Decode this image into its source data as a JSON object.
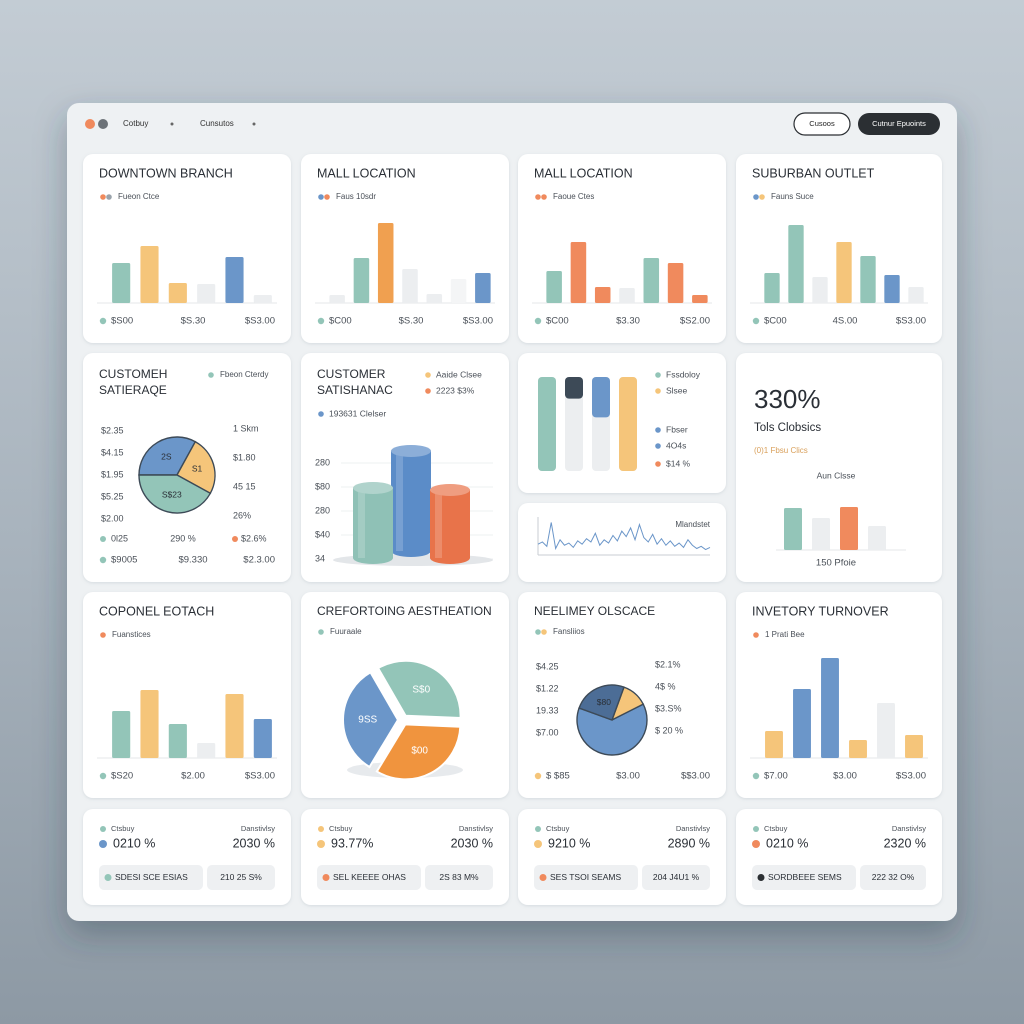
{
  "topbar": {
    "nav": [
      "Cotbuy",
      "Cunsutos"
    ],
    "buttons": [
      "Cusoos",
      "Cutnur Epuoints"
    ]
  },
  "cards": [
    {
      "kind": "bars",
      "title": "DOWNTOWN BRANCH",
      "legend": {
        "label": "Fueon Ctce",
        "colors": [
          "#f08a5d",
          "#9aa3ab"
        ]
      },
      "ylim": [
        0,
        100
      ],
      "bars": [
        {
          "value": 40,
          "color": "#93c5b8"
        },
        {
          "value": 57,
          "color": "#f5c57a"
        },
        {
          "value": 20,
          "color": "#f5c57a"
        },
        {
          "value": 19,
          "color": "#eceef0"
        },
        {
          "value": 46,
          "color": "#6b96c9"
        },
        {
          "value": 8,
          "color": "#eceef0"
        }
      ],
      "footer": [
        "$S00",
        "$S.30",
        "$S3.00"
      ],
      "footer_color": "#93c5b8"
    },
    {
      "kind": "bars",
      "title": "MALL LOCATION",
      "legend": {
        "label": "Faus 10sdr",
        "colors": [
          "#6b96c9",
          "#f08a5d"
        ]
      },
      "ylim": [
        0,
        100
      ],
      "bars": [
        {
          "value": 8,
          "color": "#eceef0"
        },
        {
          "value": 45,
          "color": "#93c5b8"
        },
        {
          "value": 80,
          "color": "#f0a050"
        },
        {
          "value": 34,
          "color": "#eceef0"
        },
        {
          "value": 9,
          "color": "#eceef0"
        },
        {
          "value": 24,
          "color": "#f4f5f6"
        },
        {
          "value": 30,
          "color": "#6b96c9"
        }
      ],
      "footer": [
        "$C00",
        "$S.30",
        "$S3.00"
      ],
      "footer_color": "#93c5b8"
    },
    {
      "kind": "bars",
      "title": "MALL LOCATION",
      "legend": {
        "label": "Faoue Ctes",
        "colors": [
          "#f08a5d",
          "#f08a5d"
        ]
      },
      "ylim": [
        0,
        100
      ],
      "bars": [
        {
          "value": 32,
          "color": "#93c5b8"
        },
        {
          "value": 61,
          "color": "#f08a5d"
        },
        {
          "value": 16,
          "color": "#f08a5d"
        },
        {
          "value": 15,
          "color": "#eceef0"
        },
        {
          "value": 45,
          "color": "#93c5b8"
        },
        {
          "value": 40,
          "color": "#f08a5d"
        },
        {
          "value": 8,
          "color": "#f08a5d"
        }
      ],
      "footer": [
        "$C00",
        "$3.30",
        "$S2.00"
      ],
      "footer_color": "#93c5b8"
    },
    {
      "kind": "bars",
      "title": "SUBURBAN OUTLET",
      "legend": {
        "label": "Fauns Suce",
        "colors": [
          "#6b96c9",
          "#f5c57a"
        ]
      },
      "ylim": [
        0,
        100
      ],
      "bars": [
        {
          "value": 30,
          "color": "#93c5b8"
        },
        {
          "value": 78,
          "color": "#93c5b8"
        },
        {
          "value": 26,
          "color": "#eceef0"
        },
        {
          "value": 61,
          "color": "#f5c57a"
        },
        {
          "value": 47,
          "color": "#93c5b8"
        },
        {
          "value": 28,
          "color": "#6b96c9"
        },
        {
          "value": 16,
          "color": "#eceef0"
        }
      ],
      "footer": [
        "$C00",
        "4S.00",
        "$S3.00"
      ],
      "footer_color": "#93c5b8"
    },
    {
      "kind": "pie-labeled",
      "title": [
        "CUSTOMEH",
        "SATIERAQE"
      ],
      "legend": {
        "label": "Fbeon Cterdy",
        "colors": [
          "#93c5b8"
        ]
      },
      "start": 270,
      "slices": [
        {
          "value": 33,
          "color": "#6b96c9",
          "label": "2S"
        },
        {
          "value": 25,
          "color": "#f5c57a",
          "label": "S1"
        },
        {
          "value": 42,
          "color": "#93c5b8",
          "label": "S$23"
        }
      ],
      "left_labels": [
        "$2.35",
        "$4.15",
        "$1.95",
        "$5.25",
        "$2.00"
      ],
      "right_labels": [
        "1 Skm",
        "$1.80",
        "45 15",
        "26%"
      ],
      "bottom": {
        "labels": [
          "0l25",
          "290 %",
          "$2.6%"
        ],
        "colors": [
          "#93c5b8",
          "#f08a5d"
        ]
      },
      "footer": [
        "$9005",
        "$9.330",
        "$2.3.00"
      ],
      "footer_color": "#93c5b8"
    },
    {
      "kind": "cylinders",
      "title": [
        "CUSTOMER",
        "SATISHANAC"
      ],
      "legend": [
        {
          "label": "Aaide Clsee",
          "color": "#f5c57a"
        },
        {
          "label": "2223 $3%",
          "color": "#f08a5d"
        }
      ],
      "sublegend": {
        "label": "193631 Clelser",
        "color": "#6b96c9"
      },
      "axis_labels": [
        "280",
        "$80",
        "280",
        "$40",
        "34"
      ],
      "ylim": [
        0,
        100
      ],
      "cylinders": [
        {
          "value": 100,
          "color": "#5b8cc8"
        },
        {
          "value": 70,
          "color": "#8fc1b6"
        },
        {
          "value": 68,
          "color": "#e8734a"
        }
      ]
    },
    {
      "kind": "capsules",
      "ylim": [
        0,
        100
      ],
      "capsules": [
        {
          "value": 100,
          "color": "#93c5b8"
        },
        {
          "value": 23,
          "color": "#3d4a57"
        },
        {
          "value": 43,
          "color": "#6b96c9"
        },
        {
          "value": 100,
          "color": "#f5c57a"
        }
      ],
      "legend": [
        {
          "label": "Fssdoloy",
          "color": "#93c5b8"
        },
        {
          "label": "Slsee",
          "color": "#f5c57a"
        },
        {
          "label": "Fbser",
          "color": "#6b96c9"
        },
        {
          "label": "4O4s",
          "color": "#6b96c9"
        },
        {
          "label": "$14 %",
          "color": "#f08a5d"
        }
      ]
    },
    {
      "kind": "sparkline",
      "label": "Mlandstet",
      "ylim": [
        0,
        35
      ],
      "color": "#6b96c9",
      "values": [
        10,
        12,
        8,
        30,
        6,
        14,
        9,
        11,
        7,
        13,
        10,
        15,
        12,
        20,
        9,
        14,
        11,
        18,
        13,
        22,
        17,
        25,
        14,
        28,
        16,
        12,
        19,
        10,
        15,
        9,
        13,
        8,
        11,
        7,
        14,
        9,
        6,
        8,
        5,
        7
      ]
    },
    {
      "kind": "kpi",
      "value": "330%",
      "label": "Tols Clobsics",
      "note": "(0)1 Fbsu Clics",
      "chart_label": "Aun Clsse",
      "ylim": [
        0,
        100
      ],
      "bars": [
        {
          "value": 42,
          "color": "#93c5b8"
        },
        {
          "value": 32,
          "color": "#eceef0"
        },
        {
          "value": 43,
          "color": "#f08a5d"
        },
        {
          "value": 24,
          "color": "#eceef0"
        }
      ],
      "footer": "150 Pfoie"
    },
    {
      "kind": "bars",
      "title": "COPONEL EOTACH",
      "legend": {
        "label": "Fuanstices",
        "colors": [
          "#f08a5d"
        ]
      },
      "ylim": [
        0,
        100
      ],
      "bars": [
        {
          "value": 47,
          "color": "#93c5b8"
        },
        {
          "value": 68,
          "color": "#f5c57a"
        },
        {
          "value": 34,
          "color": "#93c5b8"
        },
        {
          "value": 15,
          "color": "#eceef0"
        },
        {
          "value": 64,
          "color": "#f5c57a"
        },
        {
          "value": 39,
          "color": "#6b96c9"
        }
      ],
      "footer": [
        "$S20",
        "$2.00",
        "$S3.00"
      ],
      "footer_color": "#93c5b8"
    },
    {
      "kind": "pie-exploded",
      "title": "CREFORTOING AESTHEATION",
      "legend": {
        "label": "Fuuraale",
        "colors": [
          "#93c5b8"
        ]
      },
      "start": 330,
      "slices": [
        {
          "value": 34,
          "color": "#93c5b8",
          "label": "S$0"
        },
        {
          "value": 33,
          "color": "#f0943e",
          "label": "$00"
        },
        {
          "value": 33,
          "color": "#6b96c9",
          "label": "9SS"
        }
      ]
    },
    {
      "kind": "pie-labeled",
      "title": "NEELIMEY OLSCACE",
      "legend": {
        "label": "Fansliios",
        "colors": [
          "#93c5b8",
          "#f5c57a"
        ]
      },
      "start": 20,
      "slices": [
        {
          "value": 12,
          "color": "#f5c57a"
        },
        {
          "value": 63,
          "color": "#6b96c9"
        },
        {
          "value": 25,
          "color": "#4c6d96",
          "label": "$80"
        }
      ],
      "left_labels": [
        "$4.25",
        "$1.22",
        "19.33",
        "$7.00"
      ],
      "right_labels": [
        "$2.1%",
        "4$ %",
        "$3.S%",
        "$ 20 %"
      ],
      "footer": [
        "$ $85",
        "$3.00",
        "$$3.00"
      ],
      "footer_color": "#f5c57a"
    },
    {
      "kind": "bars",
      "title": "INVETORY TURNOVER",
      "legend": {
        "label": "1 Prati Bee",
        "colors": [
          "#f08a5d"
        ]
      },
      "ylim": [
        0,
        100
      ],
      "bars": [
        {
          "value": 27,
          "color": "#f5c57a"
        },
        {
          "value": 69,
          "color": "#6b96c9"
        },
        {
          "value": 100,
          "color": "#6b96c9"
        },
        {
          "value": 18,
          "color": "#f5c57a"
        },
        {
          "value": 55,
          "color": "#eceef0"
        },
        {
          "value": 23,
          "color": "#f5c57a"
        }
      ],
      "footer": [
        "$7.00",
        "$3.00",
        "$S3.00"
      ],
      "footer_color": "#93c5b8"
    },
    {
      "kind": "summary",
      "labels": [
        "Ctsbuy",
        "Danstivlsy"
      ],
      "figures": [
        "0210 %",
        "2030 %"
      ],
      "pills": [
        "SDESI SCE ESIAS",
        "210 25 S%"
      ],
      "colors": [
        "#93c5b8",
        "#6b96c9",
        "#93c5b8"
      ]
    },
    {
      "kind": "summary",
      "labels": [
        "Ctsbuy",
        "Danstivlsy"
      ],
      "figures": [
        "93.77%",
        "2030 %"
      ],
      "pills": [
        "SEL KEEEE OHAS",
        "2S 83 M%"
      ],
      "colors": [
        "#f5c57a",
        "#f5c57a",
        "#f08a5d"
      ]
    },
    {
      "kind": "summary",
      "labels": [
        "Ctsbuy",
        "Danstivlsy"
      ],
      "figures": [
        "9210 %",
        "2890 %"
      ],
      "pills": [
        "SES TSOI SEAMS",
        "204 J4U1 %"
      ],
      "colors": [
        "#93c5b8",
        "#f5c57a",
        "#f08a5d"
      ]
    },
    {
      "kind": "summary",
      "labels": [
        "Ctsbuy",
        "Danstivlsy"
      ],
      "figures": [
        "0210 %",
        "2320 %"
      ],
      "pills": [
        "SORDBEEE SEMS",
        "222 32 O%"
      ],
      "colors": [
        "#93c5b8",
        "#f08a5d",
        "#2b2f33"
      ]
    }
  ]
}
